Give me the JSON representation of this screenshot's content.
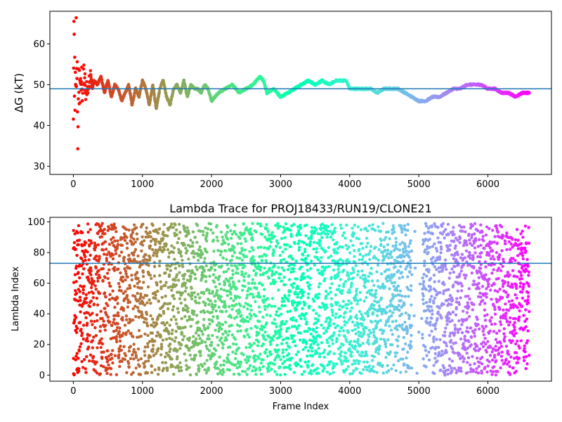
{
  "chart_data": [
    {
      "type": "scatter",
      "title": "",
      "xlabel": "",
      "ylabel": "ΔG (kT)",
      "xlim": [
        -340,
        6920
      ],
      "ylim": [
        28,
        68
      ],
      "xticks": [
        0,
        1000,
        2000,
        3000,
        4000,
        5000,
        6000
      ],
      "yticks": [
        30,
        40,
        50,
        60
      ],
      "hline": 49,
      "color_encoding": "rainbow colormap by frame index (red early, violet late)",
      "x_range": [
        0,
        6600
      ],
      "series": [
        {
          "x": [
            0,
            5,
            10,
            15,
            20,
            25,
            30,
            35,
            40,
            45,
            50,
            55,
            60,
            65,
            70,
            75,
            80,
            85,
            90,
            95,
            100,
            110,
            120,
            130,
            140,
            150,
            160,
            170,
            180,
            190,
            200,
            225,
            250,
            275,
            300,
            350,
            400,
            450,
            500,
            550,
            600,
            650,
            700,
            750,
            800,
            850,
            900,
            950,
            1000,
            1050,
            1100,
            1150,
            1200,
            1250,
            1300,
            1350,
            1400,
            1450,
            1500,
            1550,
            1600,
            1650,
            1700,
            1750,
            1800,
            1850,
            1900,
            1950,
            2000,
            2100,
            2200,
            2300,
            2400,
            2500,
            2600,
            2700,
            2750,
            2800,
            2900,
            3000,
            3100,
            3200,
            3300,
            3400,
            3500,
            3600,
            3700,
            3800,
            3900,
            3950,
            4000,
            4100,
            4200,
            4300,
            4400,
            4500,
            4600,
            4700,
            4800,
            4900,
            5000,
            5100,
            5200,
            5300,
            5400,
            5500,
            5600,
            5700,
            5800,
            5900,
            6000,
            6100,
            6200,
            6300,
            6400,
            6500,
            6600
          ],
          "y": [
            40,
            60,
            67,
            43,
            55,
            45,
            52,
            42,
            64,
            48,
            53,
            57,
            46,
            35,
            38,
            50,
            52,
            44,
            56,
            47,
            51,
            48,
            53,
            46,
            50,
            55,
            49,
            52,
            45,
            51,
            48,
            50,
            53,
            49,
            51,
            50,
            52,
            48,
            51,
            47,
            50,
            49,
            46,
            48,
            50,
            45,
            49,
            47,
            51,
            49,
            45,
            50,
            44,
            49,
            51,
            47,
            45,
            49,
            50,
            48,
            51,
            47,
            50,
            49,
            49,
            48,
            50,
            49,
            46,
            48,
            49,
            50,
            48,
            49,
            50,
            52,
            51,
            48,
            49,
            47,
            48,
            49,
            50,
            51,
            50,
            51,
            50,
            51,
            51,
            51,
            49,
            49,
            49,
            49,
            48,
            49,
            49,
            49,
            48,
            47,
            46,
            46,
            47,
            47,
            48,
            49,
            49,
            50,
            50,
            50,
            49,
            49,
            48,
            48,
            47,
            48,
            48
          ]
        }
      ]
    },
    {
      "type": "scatter",
      "title": "Lambda Trace for PROJ18433/RUN19/CLONE21",
      "xlabel": "Frame Index",
      "ylabel": "Lambda Index",
      "xlim": [
        -340,
        6920
      ],
      "ylim": [
        -4,
        103
      ],
      "xticks": [
        0,
        1000,
        2000,
        3000,
        4000,
        5000,
        6000
      ],
      "yticks": [
        0,
        20,
        40,
        60,
        80,
        100
      ],
      "hline": 73,
      "color_encoding": "rainbow colormap by frame index (red early, violet late)",
      "x_range": [
        0,
        6600
      ],
      "y_range": [
        0,
        99
      ],
      "sparse_region": [
        4900,
        5050
      ]
    }
  ]
}
